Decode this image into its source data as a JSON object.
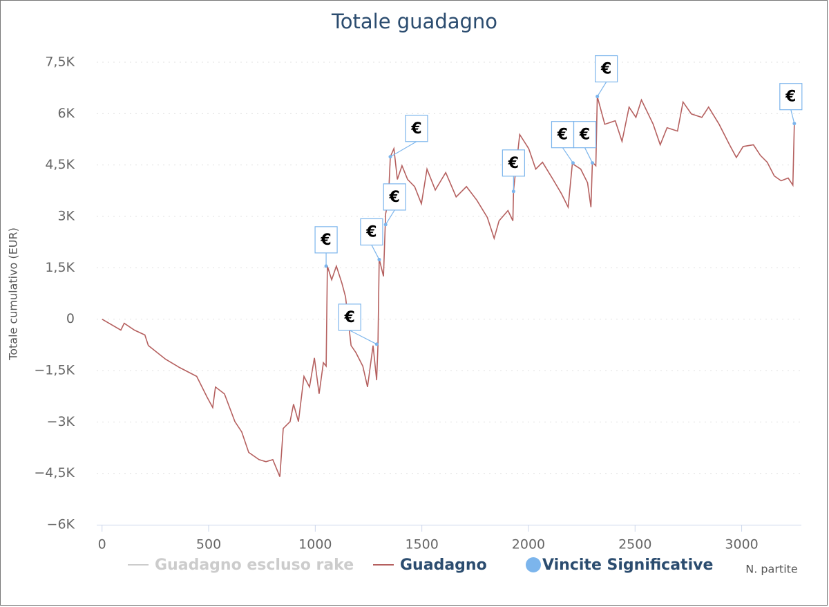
{
  "chart_data": {
    "type": "line",
    "title": "Totale guadagno",
    "x_label": "N. partite",
    "y_label": "Totale cumulativo (EUR)",
    "xlim": [
      -25,
      3280
    ],
    "ylim": [
      -6000,
      7500
    ],
    "xticks": [
      0,
      500,
      1000,
      1500,
      2000,
      2500,
      3000
    ],
    "yticks": [
      {
        "value": -6000,
        "label": "−6K"
      },
      {
        "value": -4500,
        "label": "−4,5K"
      },
      {
        "value": -3000,
        "label": "−3K"
      },
      {
        "value": -1500,
        "label": "−1,5K"
      },
      0,
      {
        "value": 1500,
        "label": "1,5K"
      },
      {
        "value": 3000,
        "label": "3K"
      },
      {
        "value": 4500,
        "label": "4,5K"
      },
      {
        "value": 6000,
        "label": "6K"
      },
      {
        "value": 7500,
        "label": "7,5K"
      }
    ],
    "grid": true,
    "series": [
      {
        "name": "Guadagno escluso rake",
        "color": "#cccccc",
        "visible": false
      },
      {
        "name": "Guadagno",
        "color": "#b5605f",
        "x": [
          0,
          88,
          104,
          152,
          201,
          217,
          298,
          363,
          444,
          493,
          519,
          532,
          574,
          623,
          655,
          688,
          736,
          769,
          801,
          834,
          850,
          882,
          898,
          921,
          947,
          973,
          996,
          1018,
          1038,
          1051,
          1057,
          1077,
          1099,
          1125,
          1142,
          1168,
          1190,
          1223,
          1245,
          1271,
          1288,
          1294,
          1300,
          1320,
          1330,
          1343,
          1352,
          1369,
          1385,
          1407,
          1433,
          1466,
          1498,
          1524,
          1563,
          1612,
          1661,
          1709,
          1758,
          1807,
          1839,
          1862,
          1904,
          1927,
          1930,
          1959,
          2001,
          2034,
          2066,
          2115,
          2154,
          2186,
          2206,
          2245,
          2277,
          2293,
          2300,
          2316,
          2323,
          2358,
          2407,
          2439,
          2472,
          2504,
          2530,
          2585,
          2618,
          2650,
          2699,
          2725,
          2764,
          2813,
          2845,
          2894,
          2943,
          2975,
          3007,
          3055,
          3088,
          3120,
          3153,
          3185,
          3218,
          3240,
          3247
        ],
        "values": [
          0,
          -320,
          -120,
          -320,
          -460,
          -770,
          -1170,
          -1410,
          -1670,
          -2280,
          -2580,
          -1980,
          -2180,
          -2990,
          -3290,
          -3890,
          -4100,
          -4160,
          -4100,
          -4600,
          -3190,
          -2990,
          -2480,
          -2990,
          -1670,
          -1980,
          -1130,
          -2180,
          -1270,
          -1370,
          1550,
          1150,
          1550,
          1050,
          650,
          -770,
          -970,
          -1370,
          -1980,
          -770,
          -1780,
          -770,
          1760,
          1250,
          3070,
          3470,
          4740,
          4980,
          4080,
          4480,
          4080,
          3870,
          3370,
          4380,
          3770,
          4280,
          3570,
          3870,
          3470,
          2970,
          2360,
          2870,
          3170,
          2870,
          3770,
          5390,
          4980,
          4380,
          4580,
          4080,
          3670,
          3270,
          4540,
          4380,
          3980,
          3270,
          4580,
          4480,
          6500,
          5690,
          5790,
          5190,
          6190,
          5890,
          6400,
          5690,
          5090,
          5590,
          5490,
          6340,
          5990,
          5890,
          6190,
          5690,
          5090,
          4720,
          5040,
          5090,
          4780,
          4580,
          4180,
          4040,
          4120,
          3910,
          5690
        ]
      },
      {
        "name": "Vincite Significative",
        "type": "scatter",
        "color": "#7cb5ec",
        "x": [
          1051,
          1288,
          1300,
          1330,
          1352,
          1930,
          2209,
          2300,
          2323,
          3247
        ],
        "values": [
          1550,
          -730,
          1740,
          2760,
          4740,
          3730,
          4560,
          4560,
          6500,
          5710
        ],
        "labels": [
          "€",
          "€",
          "€",
          "€",
          "€",
          "€",
          "€",
          "€",
          "€",
          "€"
        ]
      }
    ]
  }
}
